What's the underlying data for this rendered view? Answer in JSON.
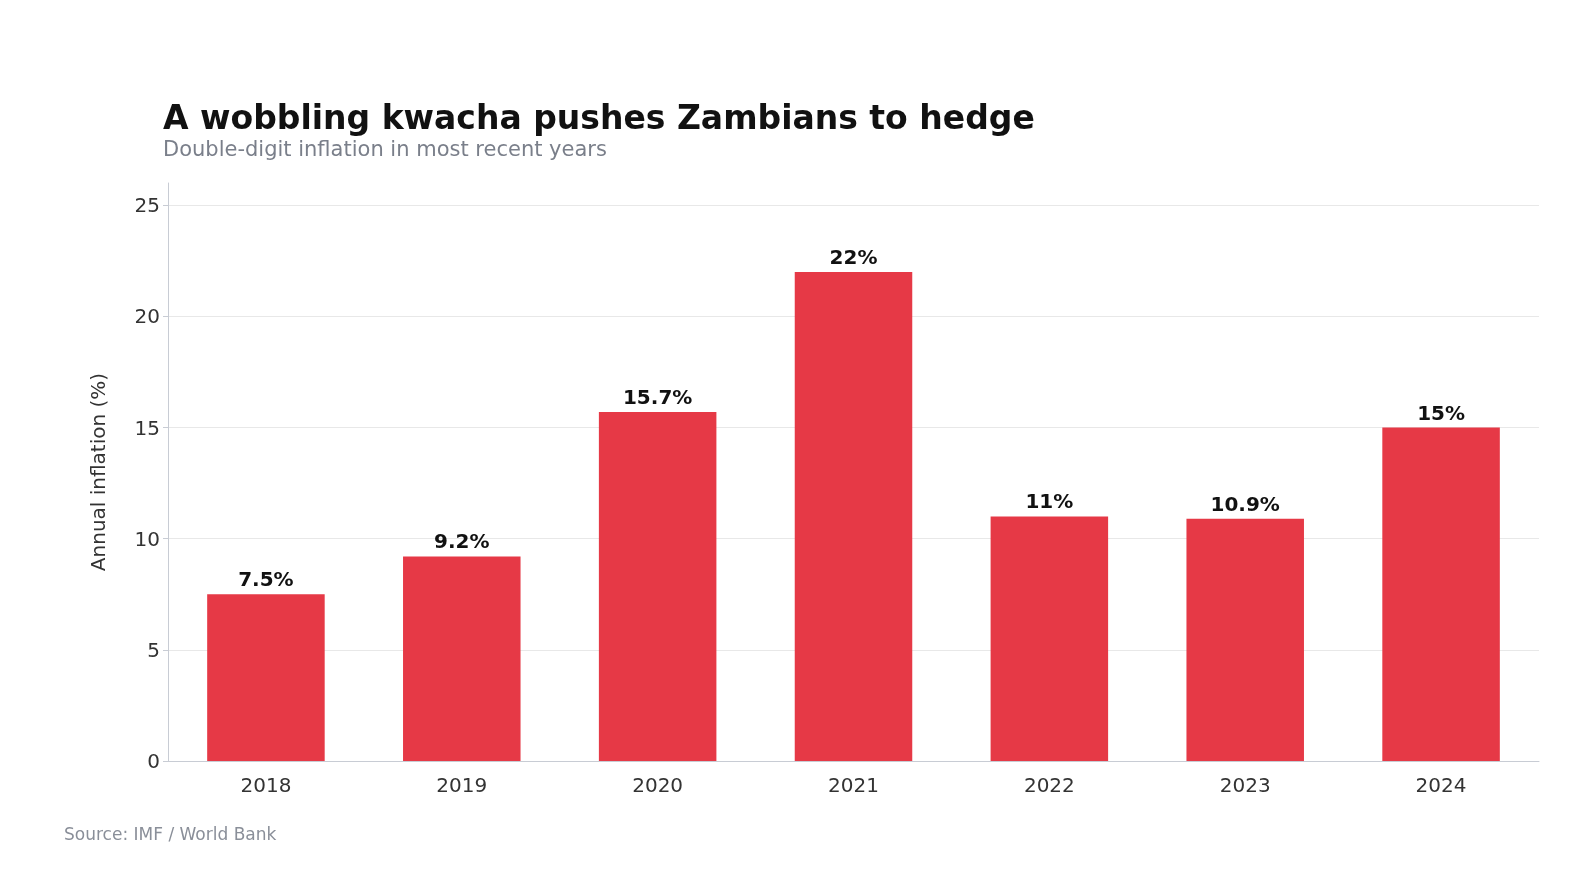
{
  "chart_data": {
    "type": "bar",
    "title": "A wobbling kwacha pushes Zambians to hedge",
    "subtitle": "Double-digit inflation in most recent years",
    "ylabel": "Annual inflation (%)",
    "annotations": [
      "Source: IMF / World Bank"
    ],
    "categories": [
      "2018",
      "2019",
      "2020",
      "2021",
      "2022",
      "2023",
      "2024"
    ],
    "values": [
      7.5,
      9.2,
      15.7,
      22,
      11,
      10.9,
      15
    ],
    "value_labels": [
      "7.5%",
      "9.2%",
      "15.7%",
      "22%",
      "11%",
      "10.9%",
      "15%"
    ],
    "color": "#e63946",
    "ylim": [
      0,
      26
    ],
    "yticks": [
      0,
      5,
      10,
      15,
      20,
      25
    ],
    "grid": "y"
  }
}
